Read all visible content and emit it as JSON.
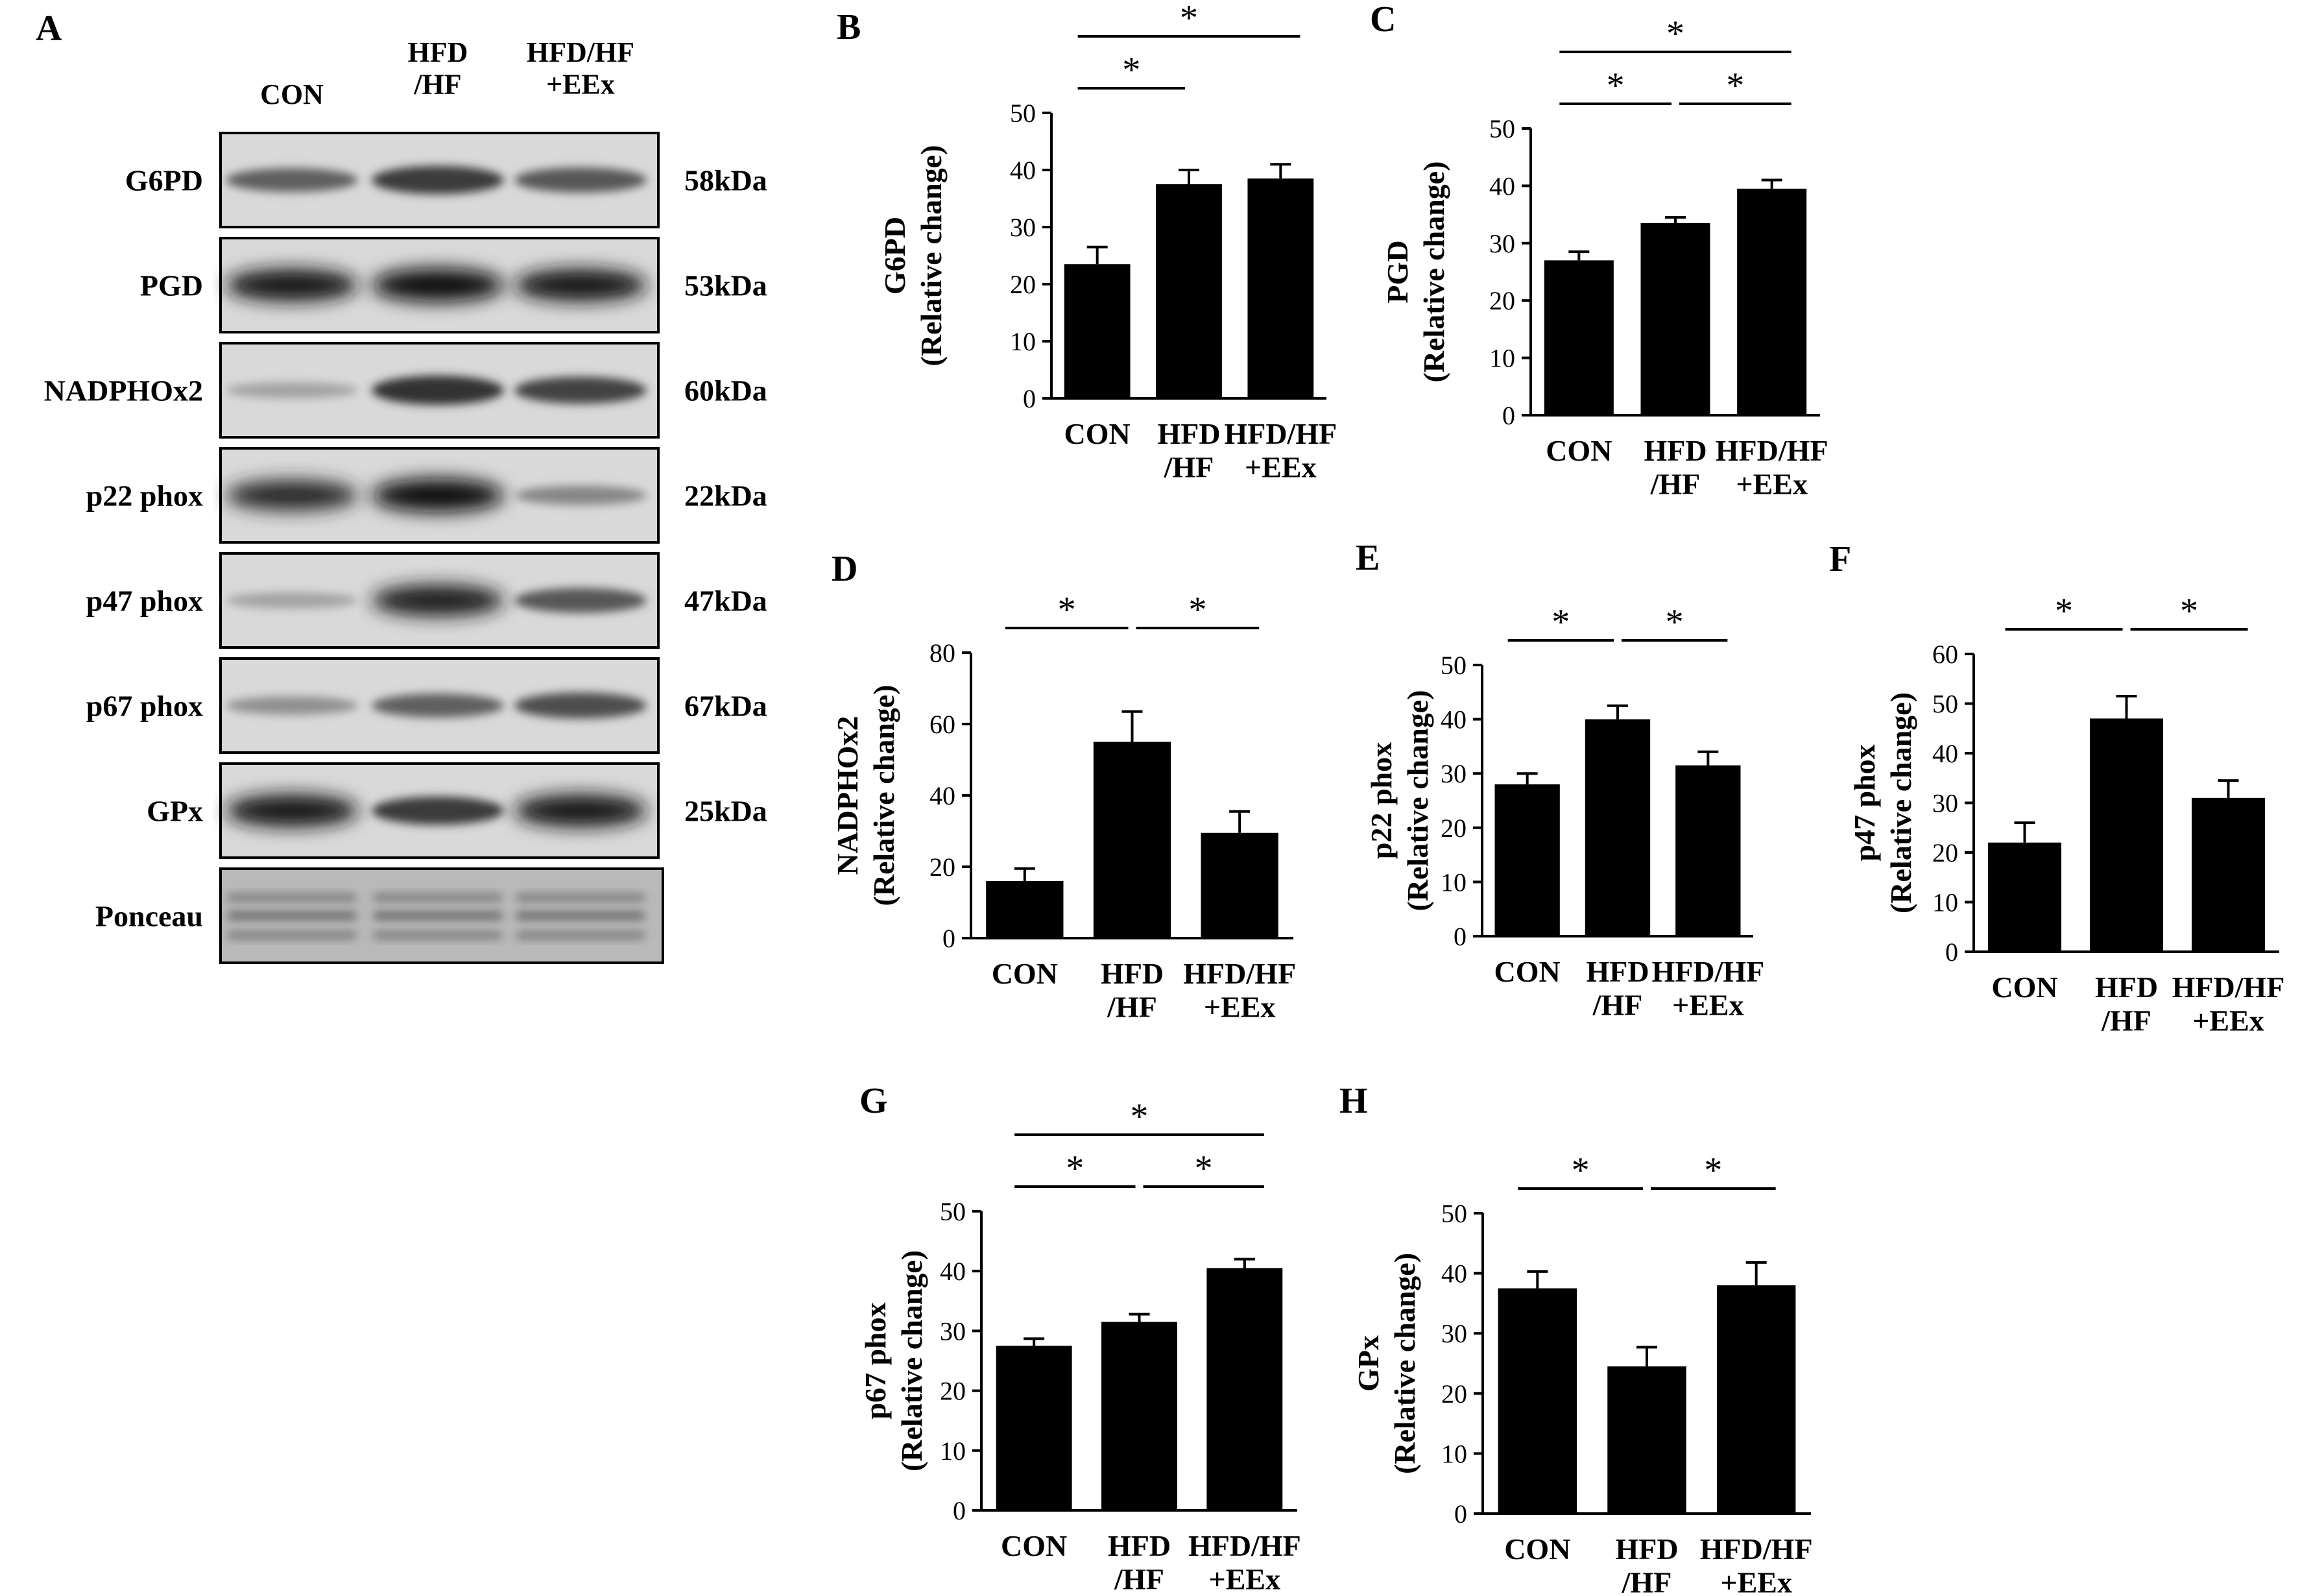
{
  "figure": {
    "panel_a": {
      "letter": "A",
      "columns": [
        "CON",
        "HFD\n/HF",
        "HFD/HF\n+EEx"
      ],
      "blots": [
        {
          "name": "G6PD",
          "size": "58kDa",
          "intensity": [
            0.55,
            0.75,
            0.6
          ]
        },
        {
          "name": "PGD",
          "size": "53kDa",
          "intensity": [
            0.95,
            1.0,
            0.95
          ]
        },
        {
          "name": "NADPHOx2",
          "size": "60kDa",
          "intensity": [
            0.2,
            0.8,
            0.7
          ]
        },
        {
          "name": "p22 phox",
          "size": "22kDa",
          "intensity": [
            0.85,
            1.0,
            0.35
          ]
        },
        {
          "name": "p47 phox",
          "size": "47kDa",
          "intensity": [
            0.2,
            0.9,
            0.6
          ]
        },
        {
          "name": "p67 phox",
          "size": "67kDa",
          "intensity": [
            0.3,
            0.55,
            0.65
          ]
        },
        {
          "name": "GPx",
          "size": "25kDa",
          "intensity": [
            0.95,
            0.75,
            0.95
          ]
        },
        {
          "name": "Ponceau",
          "size": "",
          "intensity": [
            0.35,
            0.35,
            0.35
          ]
        }
      ]
    }
  },
  "chart_data": [
    {
      "panel": "B",
      "type": "bar",
      "ylabel": "G6PD\n(Relative change)",
      "categories": [
        "CON",
        "HFD\n/HF",
        "HFD/HF\n+EEx"
      ],
      "values": [
        23.5,
        37.5,
        38.5
      ],
      "errors": [
        3,
        2.5,
        2.5
      ],
      "ylim": [
        0,
        50
      ],
      "yticks": [
        0,
        10,
        20,
        30,
        40,
        50
      ],
      "significance": [
        {
          "from": 0,
          "to": 1,
          "label": "*",
          "level": 1
        },
        {
          "from": 0,
          "to": 2,
          "label": "*",
          "level": 2
        }
      ]
    },
    {
      "panel": "C",
      "type": "bar",
      "ylabel": "PGD\n(Relative change)",
      "categories": [
        "CON",
        "HFD\n/HF",
        "HFD/HF\n+EEx"
      ],
      "values": [
        27,
        33.5,
        39.5
      ],
      "errors": [
        1.5,
        1,
        1.5
      ],
      "ylim": [
        0,
        50
      ],
      "yticks": [
        0,
        10,
        20,
        30,
        40,
        50
      ],
      "significance": [
        {
          "from": 0,
          "to": 1,
          "label": "*",
          "level": 1
        },
        {
          "from": 1,
          "to": 2,
          "label": "*",
          "level": 1
        },
        {
          "from": 0,
          "to": 2,
          "label": "*",
          "level": 2
        }
      ]
    },
    {
      "panel": "D",
      "type": "bar",
      "ylabel": "NADPHOx2\n(Relative change)",
      "categories": [
        "CON",
        "HFD\n/HF",
        "HFD/HF\n+EEx"
      ],
      "values": [
        16,
        55,
        29.5
      ],
      "errors": [
        3.5,
        8.5,
        6
      ],
      "ylim": [
        0,
        80
      ],
      "yticks": [
        0,
        20,
        40,
        60,
        80
      ],
      "significance": [
        {
          "from": 0,
          "to": 1,
          "label": "*",
          "level": 1
        },
        {
          "from": 1,
          "to": 2,
          "label": "*",
          "level": 1
        }
      ]
    },
    {
      "panel": "E",
      "type": "bar",
      "ylabel": "p22 phox\n(Relative change)",
      "categories": [
        "CON",
        "HFD\n/HF",
        "HFD/HF\n+EEx"
      ],
      "values": [
        28,
        40,
        31.5
      ],
      "errors": [
        2,
        2.5,
        2.5
      ],
      "ylim": [
        0,
        50
      ],
      "yticks": [
        0,
        10,
        20,
        30,
        40,
        50
      ],
      "significance": [
        {
          "from": 0,
          "to": 1,
          "label": "*",
          "level": 1
        },
        {
          "from": 1,
          "to": 2,
          "label": "*",
          "level": 1
        }
      ]
    },
    {
      "panel": "F",
      "type": "bar",
      "ylabel": "p47 phox\n(Relative change)",
      "categories": [
        "CON",
        "HFD\n/HF",
        "HFD/HF\n+EEx"
      ],
      "values": [
        22,
        47,
        31
      ],
      "errors": [
        4,
        4.5,
        3.5
      ],
      "ylim": [
        0,
        60
      ],
      "yticks": [
        0,
        10,
        20,
        30,
        40,
        50,
        60
      ],
      "significance": [
        {
          "from": 0,
          "to": 1,
          "label": "*",
          "level": 1
        },
        {
          "from": 1,
          "to": 2,
          "label": "*",
          "level": 1
        }
      ]
    },
    {
      "panel": "G",
      "type": "bar",
      "ylabel": "p67 phox\n(Relative change)",
      "categories": [
        "CON",
        "HFD\n/HF",
        "HFD/HF\n+EEx"
      ],
      "values": [
        27.5,
        31.5,
        40.5
      ],
      "errors": [
        1.2,
        1.3,
        1.5
      ],
      "ylim": [
        0,
        50
      ],
      "yticks": [
        0,
        10,
        20,
        30,
        40,
        50
      ],
      "significance": [
        {
          "from": 0,
          "to": 1,
          "label": "*",
          "level": 1
        },
        {
          "from": 1,
          "to": 2,
          "label": "*",
          "level": 1
        },
        {
          "from": 0,
          "to": 2,
          "label": "*",
          "level": 2
        }
      ]
    },
    {
      "panel": "H",
      "type": "bar",
      "ylabel": "GPx\n(Relative change)",
      "categories": [
        "CON",
        "HFD\n/HF",
        "HFD/HF\n+EEx"
      ],
      "values": [
        37.5,
        24.5,
        38
      ],
      "errors": [
        2.8,
        3.2,
        3.8
      ],
      "ylim": [
        0,
        50
      ],
      "yticks": [
        0,
        10,
        20,
        30,
        40,
        50
      ],
      "significance": [
        {
          "from": 0,
          "to": 1,
          "label": "*",
          "level": 1
        },
        {
          "from": 1,
          "to": 2,
          "label": "*",
          "level": 1
        }
      ]
    }
  ]
}
